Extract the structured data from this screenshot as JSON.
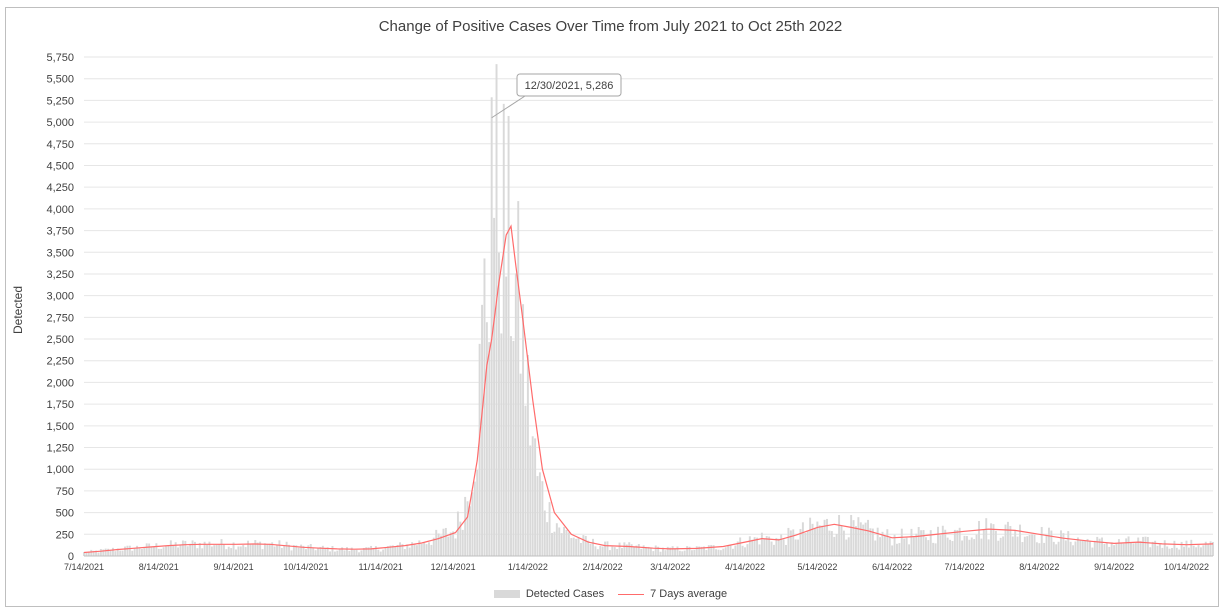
{
  "chart_data": {
    "type": "bar",
    "title": "Change of Positive Cases Over Time from July 2021 to Oct 25th 2022",
    "xlabel": "",
    "ylabel": "Detected",
    "ylim": [
      0,
      5750
    ],
    "ytick_step": 250,
    "x_tick_labels": [
      "7/14/2021",
      "8/14/2021",
      "9/14/2021",
      "10/14/2021",
      "11/14/2021",
      "12/14/2021",
      "1/14/2022",
      "2/14/2022",
      "3/14/2022",
      "4/14/2022",
      "5/14/2022",
      "6/14/2022",
      "7/14/2022",
      "8/14/2022",
      "9/14/2022",
      "10/14/2022"
    ],
    "grid": true,
    "legend_position": "bottom",
    "date_range": [
      "7/14/2021",
      "10/25/2022"
    ],
    "colors": {
      "bars": "#d9d9d9",
      "line": "#ff6b6b",
      "grid": "#e6e6e6",
      "text": "#404040"
    },
    "series": [
      {
        "name": "Detected Cases",
        "kind": "bar",
        "daily_profile": [
          [
            "7/14/2021",
            40
          ],
          [
            "7/21/2021",
            60
          ],
          [
            "7/28/2021",
            80
          ],
          [
            "8/4/2021",
            95
          ],
          [
            "8/11/2021",
            110
          ],
          [
            "8/18/2021",
            125
          ],
          [
            "8/25/2021",
            135
          ],
          [
            "9/1/2021",
            140
          ],
          [
            "9/8/2021",
            140
          ],
          [
            "9/15/2021",
            135
          ],
          [
            "9/22/2021",
            140
          ],
          [
            "9/29/2021",
            140
          ],
          [
            "10/6/2021",
            120
          ],
          [
            "10/13/2021",
            100
          ],
          [
            "10/20/2021",
            90
          ],
          [
            "10/27/2021",
            80
          ],
          [
            "11/3/2021",
            75
          ],
          [
            "11/10/2021",
            80
          ],
          [
            "11/17/2021",
            100
          ],
          [
            "11/24/2021",
            120
          ],
          [
            "12/1/2021",
            160
          ],
          [
            "12/8/2021",
            220
          ],
          [
            "12/15/2021",
            300
          ],
          [
            "12/20/2021",
            700
          ],
          [
            "12/24/2021",
            1500
          ],
          [
            "12/27/2021",
            2900
          ],
          [
            "12/29/2021",
            3300
          ],
          [
            "12/30/2021",
            5286
          ],
          [
            "12/31/2021",
            4000
          ],
          [
            "1/2/2022",
            4200
          ],
          [
            "1/5/2022",
            3700
          ],
          [
            "1/8/2022",
            3200
          ],
          [
            "1/11/2022",
            2700
          ],
          [
            "1/14/2022",
            1800
          ],
          [
            "1/18/2022",
            900
          ],
          [
            "1/23/2022",
            500
          ],
          [
            "1/28/2022",
            300
          ],
          [
            "2/5/2022",
            180
          ],
          [
            "2/14/2022",
            120
          ],
          [
            "2/25/2022",
            110
          ],
          [
            "3/7/2022",
            90
          ],
          [
            "3/14/2022",
            80
          ],
          [
            "3/25/2022",
            85
          ],
          [
            "4/5/2022",
            110
          ],
          [
            "4/14/2022",
            170
          ],
          [
            "4/21/2022",
            210
          ],
          [
            "4/28/2022",
            190
          ],
          [
            "5/5/2022",
            250
          ],
          [
            "5/14/2022",
            340
          ],
          [
            "5/21/2022",
            370
          ],
          [
            "5/28/2022",
            330
          ],
          [
            "6/4/2022",
            290
          ],
          [
            "6/14/2022",
            210
          ],
          [
            "6/24/2022",
            230
          ],
          [
            "7/4/2022",
            260
          ],
          [
            "7/14/2022",
            290
          ],
          [
            "7/24/2022",
            320
          ],
          [
            "8/4/2022",
            300
          ],
          [
            "8/14/2022",
            250
          ],
          [
            "8/24/2022",
            210
          ],
          [
            "9/4/2022",
            170
          ],
          [
            "9/14/2022",
            150
          ],
          [
            "9/24/2022",
            165
          ],
          [
            "10/4/2022",
            140
          ],
          [
            "10/14/2022",
            130
          ],
          [
            "10/25/2022",
            140
          ]
        ]
      },
      {
        "name": "7 Days average",
        "kind": "line",
        "points": [
          [
            "7/14/2021",
            40
          ],
          [
            "7/21/2021",
            55
          ],
          [
            "7/28/2021",
            75
          ],
          [
            "8/4/2021",
            90
          ],
          [
            "8/11/2021",
            105
          ],
          [
            "8/18/2021",
            120
          ],
          [
            "8/25/2021",
            130
          ],
          [
            "9/1/2021",
            135
          ],
          [
            "9/8/2021",
            135
          ],
          [
            "9/15/2021",
            135
          ],
          [
            "9/22/2021",
            138
          ],
          [
            "9/29/2021",
            135
          ],
          [
            "10/6/2021",
            118
          ],
          [
            "10/13/2021",
            100
          ],
          [
            "10/20/2021",
            90
          ],
          [
            "10/27/2021",
            82
          ],
          [
            "11/3/2021",
            78
          ],
          [
            "11/10/2021",
            82
          ],
          [
            "11/17/2021",
            100
          ],
          [
            "11/24/2021",
            120
          ],
          [
            "12/1/2021",
            150
          ],
          [
            "12/8/2021",
            200
          ],
          [
            "12/15/2021",
            270
          ],
          [
            "12/20/2021",
            450
          ],
          [
            "12/24/2021",
            1100
          ],
          [
            "12/28/2021",
            2200
          ],
          [
            "12/30/2021",
            2500
          ],
          [
            "1/2/2022",
            3150
          ],
          [
            "1/5/2022",
            3700
          ],
          [
            "1/7/2022",
            3800
          ],
          [
            "1/9/2022",
            3350
          ],
          [
            "1/12/2022",
            2700
          ],
          [
            "1/16/2022",
            1800
          ],
          [
            "1/20/2022",
            1000
          ],
          [
            "1/25/2022",
            500
          ],
          [
            "2/1/2022",
            250
          ],
          [
            "2/8/2022",
            160
          ],
          [
            "2/15/2022",
            120
          ],
          [
            "2/25/2022",
            110
          ],
          [
            "3/7/2022",
            90
          ],
          [
            "3/14/2022",
            82
          ],
          [
            "3/25/2022",
            88
          ],
          [
            "4/5/2022",
            110
          ],
          [
            "4/14/2022",
            160
          ],
          [
            "4/21/2022",
            200
          ],
          [
            "4/28/2022",
            185
          ],
          [
            "5/5/2022",
            240
          ],
          [
            "5/14/2022",
            330
          ],
          [
            "5/21/2022",
            365
          ],
          [
            "5/28/2022",
            330
          ],
          [
            "6/4/2022",
            290
          ],
          [
            "6/14/2022",
            210
          ],
          [
            "6/24/2022",
            225
          ],
          [
            "7/4/2022",
            255
          ],
          [
            "7/14/2022",
            285
          ],
          [
            "7/24/2022",
            310
          ],
          [
            "8/4/2022",
            295
          ],
          [
            "8/14/2022",
            250
          ],
          [
            "8/24/2022",
            205
          ],
          [
            "9/4/2022",
            170
          ],
          [
            "9/14/2022",
            145
          ],
          [
            "9/24/2022",
            160
          ],
          [
            "10/4/2022",
            140
          ],
          [
            "10/14/2022",
            130
          ],
          [
            "10/25/2022",
            140
          ]
        ]
      }
    ],
    "annotation": {
      "date": "12/30/2021",
      "value": 5286,
      "text": "12/30/2021, 5,286"
    }
  }
}
